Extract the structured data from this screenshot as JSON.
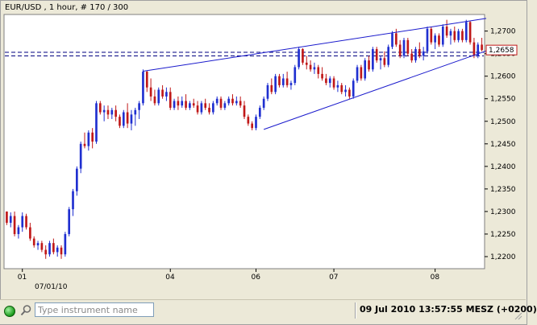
{
  "chart_data": {
    "type": "candlestick",
    "title": "EUR/USD , 1 hour, # 170 / 300",
    "current_price_label": "1,2658",
    "y_ticks": [
      "1,2700",
      "1,2650",
      "1,2600",
      "1,2550",
      "1,2500",
      "1,2450",
      "1,2400",
      "1,2350",
      "1,2300",
      "1,2250",
      "1,2200"
    ],
    "y_tick_values": [
      1.27,
      1.265,
      1.26,
      1.255,
      1.25,
      1.245,
      1.24,
      1.235,
      1.23,
      1.225,
      1.22
    ],
    "ylim": [
      1.2175,
      1.2735
    ],
    "x_ticks": [
      "01",
      "04",
      "06",
      "07",
      "08"
    ],
    "x_date_label": "07/01/10",
    "horizontal_lines": [
      1.2653,
      1.2645
    ],
    "trendlines": [
      {
        "from": [
          35,
          1.2611
        ],
        "to": [
          127,
          1.2728
        ]
      },
      {
        "from": [
          66,
          1.2482
        ],
        "to": [
          127,
          1.2656
        ]
      }
    ],
    "candles": [
      [
        1.23,
        1.23,
        1.227,
        1.2275
      ],
      [
        1.2275,
        1.2298,
        1.2265,
        1.229
      ],
      [
        1.229,
        1.23,
        1.2245,
        1.225
      ],
      [
        1.225,
        1.227,
        1.224,
        1.2265
      ],
      [
        1.2265,
        1.2298,
        1.2255,
        1.229
      ],
      [
        1.229,
        1.2295,
        1.226,
        1.2265
      ],
      [
        1.2265,
        1.2275,
        1.2235,
        1.224
      ],
      [
        1.224,
        1.2245,
        1.222,
        1.2225
      ],
      [
        1.2225,
        1.2235,
        1.2215,
        1.223
      ],
      [
        1.223,
        1.2235,
        1.221,
        1.2215
      ],
      [
        1.2215,
        1.2225,
        1.2195,
        1.2205
      ],
      [
        1.2205,
        1.2235,
        1.22,
        1.223
      ],
      [
        1.223,
        1.224,
        1.2205,
        1.221
      ],
      [
        1.221,
        1.2225,
        1.22,
        1.222
      ],
      [
        1.222,
        1.2225,
        1.2195,
        1.2205
      ],
      [
        1.2205,
        1.2255,
        1.22,
        1.225
      ],
      [
        1.225,
        1.231,
        1.2245,
        1.2305
      ],
      [
        1.2305,
        1.235,
        1.229,
        1.2345
      ],
      [
        1.2345,
        1.24,
        1.2335,
        1.2395
      ],
      [
        1.2395,
        1.2455,
        1.2385,
        1.245
      ],
      [
        1.245,
        1.2475,
        1.244,
        1.2445
      ],
      [
        1.2445,
        1.248,
        1.2435,
        1.2475
      ],
      [
        1.2475,
        1.2485,
        1.244,
        1.2455
      ],
      [
        1.2455,
        1.2545,
        1.245,
        1.254
      ],
      [
        1.254,
        1.2545,
        1.2515,
        1.252
      ],
      [
        1.252,
        1.2535,
        1.25,
        1.2525
      ],
      [
        1.2525,
        1.2535,
        1.2505,
        1.2515
      ],
      [
        1.2515,
        1.253,
        1.2505,
        1.2525
      ],
      [
        1.2525,
        1.2535,
        1.25,
        1.251
      ],
      [
        1.251,
        1.2515,
        1.2485,
        1.249
      ],
      [
        1.249,
        1.2525,
        1.2485,
        1.252
      ],
      [
        1.252,
        1.254,
        1.2485,
        1.2495
      ],
      [
        1.2495,
        1.2525,
        1.248,
        1.2515
      ],
      [
        1.2515,
        1.253,
        1.249,
        1.2525
      ],
      [
        1.2525,
        1.2545,
        1.2505,
        1.254
      ],
      [
        1.254,
        1.2615,
        1.2535,
        1.261
      ],
      [
        1.261,
        1.2612,
        1.2565,
        1.2575
      ],
      [
        1.2575,
        1.2595,
        1.2545,
        1.2555
      ],
      [
        1.2555,
        1.257,
        1.2535,
        1.254
      ],
      [
        1.254,
        1.2575,
        1.2535,
        1.257
      ],
      [
        1.257,
        1.258,
        1.255,
        1.2555
      ],
      [
        1.2555,
        1.2575,
        1.2545,
        1.2565
      ],
      [
        1.2565,
        1.2575,
        1.2525,
        1.253
      ],
      [
        1.253,
        1.255,
        1.2525,
        1.2545
      ],
      [
        1.2545,
        1.2555,
        1.2525,
        1.2535
      ],
      [
        1.2535,
        1.2555,
        1.253,
        1.2545
      ],
      [
        1.2545,
        1.256,
        1.2525,
        1.253
      ],
      [
        1.253,
        1.2545,
        1.2525,
        1.254
      ],
      [
        1.254,
        1.255,
        1.253,
        1.2535
      ],
      [
        1.2535,
        1.2545,
        1.2515,
        1.252
      ],
      [
        1.252,
        1.2545,
        1.2515,
        1.254
      ],
      [
        1.254,
        1.255,
        1.2525,
        1.253
      ],
      [
        1.253,
        1.254,
        1.2515,
        1.252
      ],
      [
        1.252,
        1.2545,
        1.2515,
        1.254
      ],
      [
        1.254,
        1.2555,
        1.2535,
        1.255
      ],
      [
        1.255,
        1.2555,
        1.2525,
        1.253
      ],
      [
        1.253,
        1.2545,
        1.2525,
        1.254
      ],
      [
        1.254,
        1.2555,
        1.2535,
        1.255
      ],
      [
        1.255,
        1.256,
        1.2535,
        1.254
      ],
      [
        1.254,
        1.2555,
        1.2535,
        1.2545
      ],
      [
        1.2545,
        1.2555,
        1.253,
        1.2535
      ],
      [
        1.2535,
        1.2545,
        1.2505,
        1.251
      ],
      [
        1.251,
        1.2515,
        1.249,
        1.2495
      ],
      [
        1.2495,
        1.25,
        1.248,
        1.2485
      ],
      [
        1.2485,
        1.2515,
        1.248,
        1.251
      ],
      [
        1.251,
        1.2535,
        1.2505,
        1.253
      ],
      [
        1.253,
        1.2555,
        1.2525,
        1.255
      ],
      [
        1.255,
        1.2585,
        1.2545,
        1.258
      ],
      [
        1.258,
        1.2595,
        1.256,
        1.2565
      ],
      [
        1.2565,
        1.2605,
        1.256,
        1.26
      ],
      [
        1.26,
        1.2605,
        1.2575,
        1.258
      ],
      [
        1.258,
        1.2605,
        1.2575,
        1.2595
      ],
      [
        1.2595,
        1.261,
        1.2575,
        1.258
      ],
      [
        1.258,
        1.259,
        1.257,
        1.2585
      ],
      [
        1.2585,
        1.2625,
        1.258,
        1.262
      ],
      [
        1.262,
        1.2665,
        1.2615,
        1.266
      ],
      [
        1.266,
        1.2662,
        1.2625,
        1.263
      ],
      [
        1.263,
        1.2645,
        1.2615,
        1.2625
      ],
      [
        1.2625,
        1.2635,
        1.261,
        1.2615
      ],
      [
        1.2615,
        1.263,
        1.2605,
        1.262
      ],
      [
        1.262,
        1.2625,
        1.2595,
        1.2605
      ],
      [
        1.2605,
        1.262,
        1.259,
        1.2595
      ],
      [
        1.2595,
        1.2605,
        1.258,
        1.2585
      ],
      [
        1.2585,
        1.26,
        1.2575,
        1.2595
      ],
      [
        1.2595,
        1.26,
        1.257,
        1.2575
      ],
      [
        1.2575,
        1.259,
        1.2565,
        1.258
      ],
      [
        1.258,
        1.2585,
        1.256,
        1.2565
      ],
      [
        1.2565,
        1.258,
        1.2555,
        1.257
      ],
      [
        1.257,
        1.2575,
        1.255,
        1.2555
      ],
      [
        1.2555,
        1.2595,
        1.255,
        1.259
      ],
      [
        1.259,
        1.2625,
        1.2585,
        1.262
      ],
      [
        1.262,
        1.2625,
        1.259,
        1.2595
      ],
      [
        1.2595,
        1.264,
        1.259,
        1.2635
      ],
      [
        1.2635,
        1.2645,
        1.261,
        1.2615
      ],
      [
        1.2615,
        1.2665,
        1.261,
        1.266
      ],
      [
        1.266,
        1.2665,
        1.263,
        1.2635
      ],
      [
        1.2635,
        1.2645,
        1.2615,
        1.264
      ],
      [
        1.264,
        1.2655,
        1.262,
        1.2625
      ],
      [
        1.2625,
        1.267,
        1.262,
        1.2665
      ],
      [
        1.2665,
        1.27,
        1.266,
        1.2695
      ],
      [
        1.2695,
        1.2705,
        1.2665,
        1.267
      ],
      [
        1.267,
        1.268,
        1.264,
        1.2645
      ],
      [
        1.2645,
        1.2685,
        1.264,
        1.268
      ],
      [
        1.268,
        1.2685,
        1.2645,
        1.265
      ],
      [
        1.265,
        1.266,
        1.263,
        1.2635
      ],
      [
        1.2635,
        1.2665,
        1.263,
        1.266
      ],
      [
        1.266,
        1.2675,
        1.264,
        1.2645
      ],
      [
        1.2645,
        1.2665,
        1.2635,
        1.2655
      ],
      [
        1.2655,
        1.271,
        1.265,
        1.2705
      ],
      [
        1.2705,
        1.271,
        1.267,
        1.2675
      ],
      [
        1.2675,
        1.2695,
        1.266,
        1.269
      ],
      [
        1.269,
        1.2695,
        1.2665,
        1.267
      ],
      [
        1.267,
        1.2715,
        1.2665,
        1.271
      ],
      [
        1.271,
        1.2725,
        1.2685,
        1.269
      ],
      [
        1.269,
        1.2705,
        1.267,
        1.27
      ],
      [
        1.27,
        1.271,
        1.2675,
        1.268
      ],
      [
        1.268,
        1.2705,
        1.2675,
        1.27
      ],
      [
        1.27,
        1.2705,
        1.2675,
        1.268
      ],
      [
        1.268,
        1.2725,
        1.2675,
        1.272
      ],
      [
        1.272,
        1.2722,
        1.267,
        1.2675
      ],
      [
        1.2675,
        1.2685,
        1.264,
        1.2645
      ],
      [
        1.2645,
        1.2675,
        1.264,
        1.267
      ],
      [
        1.267,
        1.2685,
        1.2655,
        1.2658
      ]
    ],
    "colors": {
      "bull": "#1f2fd0",
      "bear": "#c01818",
      "grid_line": "#000080",
      "trendline": "#1a1acc",
      "price_box": "#c01818"
    }
  },
  "status_bar": {
    "instrument_placeholder": "Type instrument name",
    "clock": "09 Jul 2010 13:57:55  MESZ (+0200)"
  }
}
